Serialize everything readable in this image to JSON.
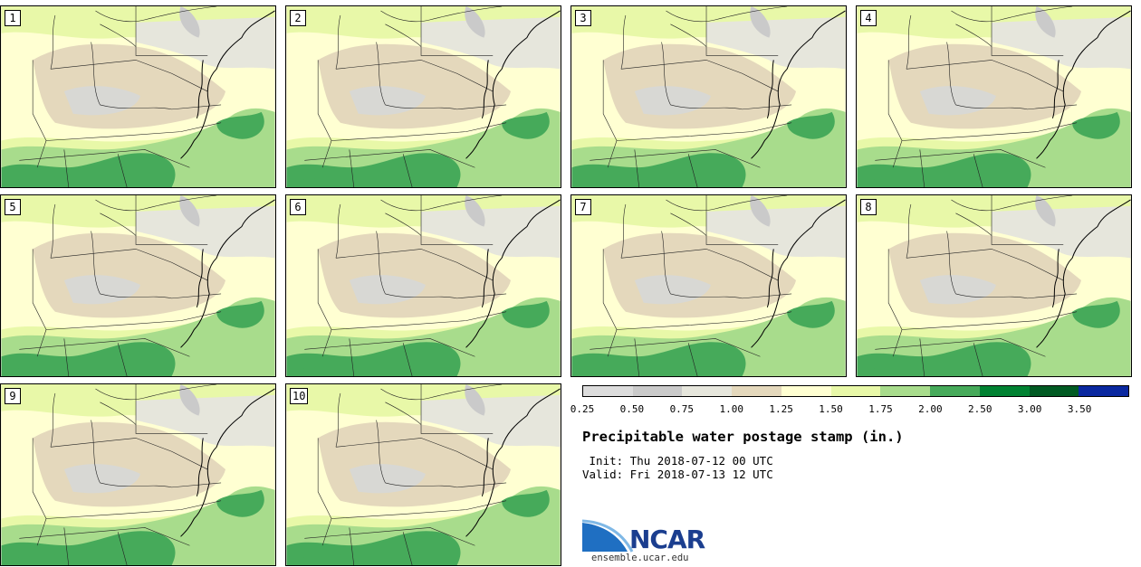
{
  "stamps": [
    {
      "label": "1"
    },
    {
      "label": "2"
    },
    {
      "label": "3"
    },
    {
      "label": "4"
    },
    {
      "label": "5"
    },
    {
      "label": "6"
    },
    {
      "label": "7"
    },
    {
      "label": "8"
    },
    {
      "label": "9"
    },
    {
      "label": "10"
    }
  ],
  "colorbar": {
    "colors": [
      "#dcdcdc",
      "#cacaca",
      "#e6e6dc",
      "#e4d8bc",
      "#ffffd2",
      "#e8f8a8",
      "#a8dc8c",
      "#46aa5a",
      "#008232",
      "#005a23",
      "#0a28a0"
    ],
    "ticks": [
      "0.25",
      "0.50",
      "0.75",
      "1.00",
      "1.25",
      "1.50",
      "1.75",
      "2.00",
      "2.50",
      "3.00",
      "3.50"
    ]
  },
  "title": "Precipitable water postage stamp (in.)",
  "init": " Init: Thu 2018-07-12 00 UTC",
  "valid": "Valid: Fri 2018-07-13 12 UTC",
  "logo": {
    "text": "NCAR",
    "url": "ensemble.ucar.edu"
  }
}
